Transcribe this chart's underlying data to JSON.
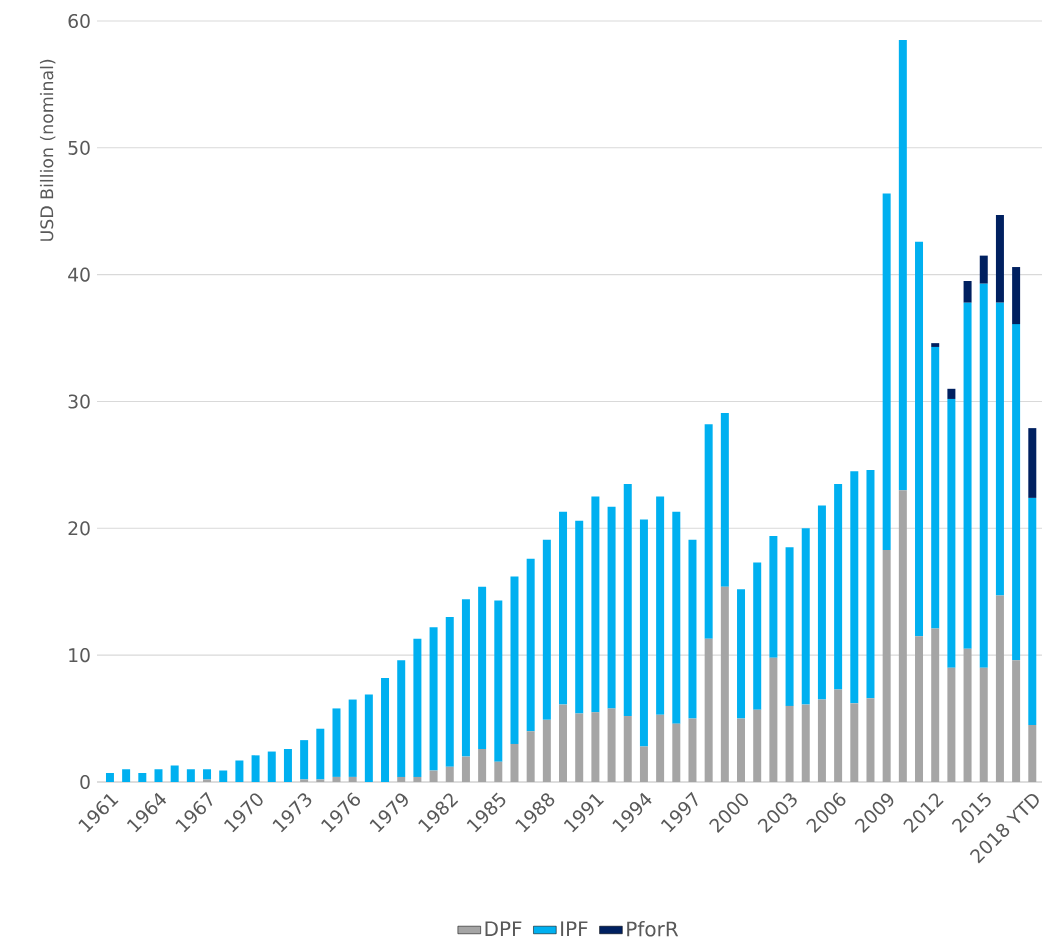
{
  "chart_data": {
    "type": "bar",
    "stacked": true,
    "ylabel": "USD Billion (nominal)",
    "categories": [
      "1961",
      null,
      null,
      "1964",
      null,
      null,
      "1967",
      null,
      null,
      "1970",
      null,
      null,
      "1973",
      null,
      null,
      "1976",
      null,
      null,
      "1979",
      null,
      null,
      "1982",
      null,
      null,
      "1985",
      null,
      null,
      "1988",
      null,
      null,
      "1991",
      null,
      null,
      "1994",
      null,
      null,
      "1997",
      null,
      null,
      "2000",
      null,
      null,
      "2003",
      null,
      null,
      "2006",
      null,
      null,
      "2009",
      null,
      null,
      "2012",
      null,
      null,
      "2015",
      null,
      null,
      "2018 YTD"
    ],
    "series": [
      {
        "name": "DPF",
        "color": "#a5a5a5",
        "values": [
          0,
          0,
          0,
          0,
          0,
          0,
          0.2,
          0,
          0,
          0,
          0,
          0,
          0.2,
          0.2,
          0.4,
          0.4,
          0,
          0,
          0.4,
          0.4,
          0.9,
          1.2,
          2.0,
          2.6,
          1.6,
          3.0,
          4.0,
          4.9,
          6.1,
          5.4,
          5.5,
          5.8,
          5.2,
          2.8,
          5.3,
          4.6,
          5.0,
          11.3,
          15.4,
          5.0,
          5.7,
          9.8,
          6.0,
          6.1,
          6.5,
          7.3,
          6.2,
          6.6,
          18.3,
          23.0,
          11.5,
          12.1,
          9.0,
          10.5,
          9.0,
          14.7,
          9.6,
          4.5
        ]
      },
      {
        "name": "IPF",
        "color": "#00b0f0",
        "values": [
          0.7,
          1.0,
          0.7,
          1.0,
          1.3,
          1.0,
          0.8,
          0.9,
          1.7,
          2.1,
          2.4,
          2.6,
          3.1,
          4.0,
          5.4,
          6.1,
          6.9,
          8.2,
          9.2,
          10.9,
          11.3,
          11.8,
          12.4,
          12.8,
          12.7,
          13.2,
          13.6,
          14.2,
          15.2,
          15.2,
          17.0,
          15.9,
          18.3,
          17.9,
          17.2,
          16.7,
          14.1,
          16.9,
          13.7,
          10.2,
          11.6,
          9.6,
          12.5,
          13.9,
          15.3,
          16.2,
          18.3,
          18.0,
          28.1,
          35.5,
          31.1,
          22.2,
          21.2,
          27.3,
          30.3,
          23.1,
          26.5,
          17.9
        ]
      },
      {
        "name": "PforR",
        "color": "#002060",
        "values": [
          null,
          null,
          null,
          null,
          null,
          null,
          null,
          null,
          null,
          null,
          null,
          null,
          null,
          null,
          null,
          null,
          null,
          null,
          null,
          null,
          null,
          null,
          null,
          null,
          null,
          null,
          null,
          null,
          null,
          null,
          null,
          null,
          null,
          null,
          null,
          null,
          null,
          null,
          null,
          null,
          null,
          null,
          null,
          null,
          null,
          null,
          null,
          null,
          null,
          null,
          null,
          0.3,
          0.8,
          1.7,
          2.2,
          6.9,
          4.5,
          5.5
        ]
      }
    ],
    "ylim": [
      0,
      60
    ],
    "yticks": [
      0,
      10,
      20,
      30,
      40,
      50,
      60
    ],
    "grid": "y",
    "legend": "bottom"
  }
}
